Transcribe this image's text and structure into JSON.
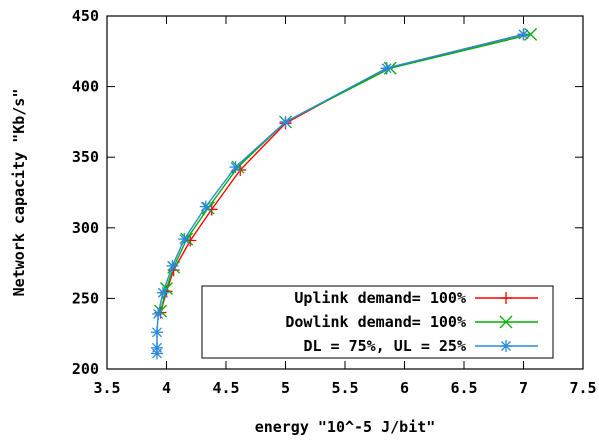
{
  "chart_data": {
    "type": "line",
    "xlabel": "energy \"10^-5 J/bit\"",
    "ylabel": "Network capacity \"Kb/s\"",
    "xlim": [
      3.5,
      7.5
    ],
    "ylim": [
      200,
      450
    ],
    "x_ticks": [
      "3.5",
      "4",
      "4.5",
      "5",
      "5.5",
      "6",
      "6.5",
      "7",
      "7.5"
    ],
    "y_ticks": [
      "200",
      "250",
      "300",
      "350",
      "400",
      "450"
    ],
    "grid": false,
    "legend_position": "bottom-right",
    "series": [
      {
        "name": "Uplink demand= 100%",
        "color": "#ff0000",
        "marker": "plus",
        "points": [
          [
            3.95,
            240
          ],
          [
            4.0,
            255
          ],
          [
            4.06,
            270
          ],
          [
            4.2,
            291
          ],
          [
            4.38,
            313
          ],
          [
            4.62,
            341
          ],
          [
            5.0,
            374
          ],
          [
            5.85,
            413
          ],
          [
            7.0,
            437
          ]
        ]
      },
      {
        "name": "Dowlink demand= 100%",
        "color": "#00b000",
        "marker": "x",
        "points": [
          [
            3.95,
            241
          ],
          [
            4.0,
            257
          ],
          [
            4.06,
            272
          ],
          [
            4.17,
            292
          ],
          [
            4.35,
            314
          ],
          [
            4.6,
            343
          ],
          [
            5.0,
            375
          ],
          [
            5.88,
            413
          ],
          [
            7.06,
            437
          ]
        ]
      },
      {
        "name": "DL = 75%, UL = 25%",
        "color": "#2a8ad8",
        "marker": "star",
        "points": [
          [
            3.92,
            211
          ],
          [
            3.92,
            215
          ],
          [
            3.92,
            226
          ],
          [
            3.93,
            239
          ],
          [
            3.97,
            254
          ],
          [
            4.05,
            273
          ],
          [
            4.15,
            292
          ],
          [
            4.33,
            315
          ],
          [
            4.58,
            343
          ],
          [
            5.0,
            375
          ],
          [
            5.85,
            413
          ],
          [
            7.0,
            437
          ]
        ]
      }
    ]
  }
}
